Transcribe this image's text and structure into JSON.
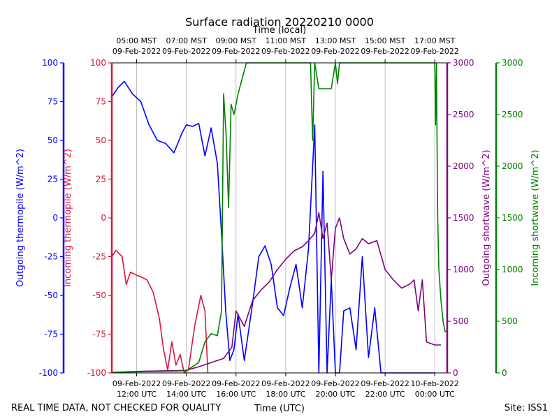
{
  "chart_data": {
    "type": "line",
    "title": "Surface radiation 20220210 0000",
    "top_xlabel": "Time (local)",
    "xlabel": "Time (UTC)",
    "footer_left": "REAL TIME DATA, NOT CHECKED FOR QUALITY",
    "footer_right": "Site: ISS1",
    "xlim": [
      "2022-02-09T11:00",
      "2022-02-10T00:30"
    ],
    "grid": true,
    "x_ticks_utc": [
      {
        "t": "2022-02-09T12:00",
        "line1": "09-Feb-2022",
        "line2": "12:00 UTC"
      },
      {
        "t": "2022-02-09T14:00",
        "line1": "09-Feb-2022",
        "line2": "14:00 UTC"
      },
      {
        "t": "2022-02-09T16:00",
        "line1": "09-Feb-2022",
        "line2": "16:00 UTC"
      },
      {
        "t": "2022-02-09T18:00",
        "line1": "09-Feb-2022",
        "line2": "18:00 UTC"
      },
      {
        "t": "2022-02-09T20:00",
        "line1": "09-Feb-2022",
        "line2": "20:00 UTC"
      },
      {
        "t": "2022-02-09T22:00",
        "line1": "09-Feb-2022",
        "line2": "22:00 UTC"
      },
      {
        "t": "2022-02-10T00:00",
        "line1": "10-Feb-2022",
        "line2": "00:00 UTC"
      }
    ],
    "x_ticks_local": [
      {
        "t": "2022-02-09T12:00",
        "line1": "05:00 MST",
        "line2": "09-Feb-2022"
      },
      {
        "t": "2022-02-09T14:00",
        "line1": "07:00 MST",
        "line2": "09-Feb-2022"
      },
      {
        "t": "2022-02-09T16:00",
        "line1": "09:00 MST",
        "line2": "09-Feb-2022"
      },
      {
        "t": "2022-02-09T18:00",
        "line1": "11:00 MST",
        "line2": "09-Feb-2022"
      },
      {
        "t": "2022-02-09T20:00",
        "line1": "13:00 MST",
        "line2": "09-Feb-2022"
      },
      {
        "t": "2022-02-09T22:00",
        "line1": "15:00 MST",
        "line2": "09-Feb-2022"
      },
      {
        "t": "2022-02-10T00:00",
        "line1": "17:00 MST",
        "line2": "09-Feb-2022"
      }
    ],
    "axes": [
      {
        "id": "thermo_out",
        "label": "Outgoing thermopile (W/m^2)",
        "color": "#0000ff",
        "ylim": [
          -100,
          100
        ],
        "ticks": [
          -100,
          -75,
          -50,
          -25,
          0,
          25,
          50,
          75,
          100
        ],
        "side": "left",
        "position": "outer"
      },
      {
        "id": "thermo_in",
        "label": "Incoming thermopile (W/m^2)",
        "color": "#dc143c",
        "ylim": [
          -100,
          100
        ],
        "ticks": [
          -100,
          -75,
          -50,
          -25,
          0,
          25,
          50,
          75,
          100
        ],
        "side": "left",
        "position": "inner"
      },
      {
        "id": "sw_out",
        "label": "Outgoing shortwave (W/m^2)",
        "color": "#800080",
        "ylim": [
          0,
          3000
        ],
        "ticks": [
          0,
          500,
          1000,
          1500,
          2000,
          2500,
          3000
        ],
        "side": "right",
        "position": "inner"
      },
      {
        "id": "sw_in",
        "label": "Incoming shortwave (W/m^2)",
        "color": "#008000",
        "ylim": [
          0,
          3000
        ],
        "ticks": [
          0,
          500,
          1000,
          1500,
          2000,
          2500,
          3000
        ],
        "side": "right",
        "position": "outer"
      }
    ],
    "series": [
      {
        "name": "Outgoing thermopile",
        "axis": "thermo_out",
        "color": "#0000ff",
        "x": [
          "2022-02-09T11:00",
          "2022-02-09T11:15",
          "2022-02-09T11:30",
          "2022-02-09T11:50",
          "2022-02-09T12:10",
          "2022-02-09T12:30",
          "2022-02-09T12:50",
          "2022-02-09T13:10",
          "2022-02-09T13:30",
          "2022-02-09T13:50",
          "2022-02-09T14:00",
          "2022-02-09T14:15",
          "2022-02-09T14:30",
          "2022-02-09T14:45",
          "2022-02-09T15:00",
          "2022-02-09T15:15",
          "2022-02-09T15:25",
          "2022-02-09T15:35",
          "2022-02-09T15:45",
          "2022-02-09T15:55",
          "2022-02-09T16:05",
          "2022-02-09T16:20",
          "2022-02-09T16:40",
          "2022-02-09T16:55",
          "2022-02-09T17:10",
          "2022-02-09T17:25",
          "2022-02-09T17:40",
          "2022-02-09T17:55",
          "2022-02-09T18:10",
          "2022-02-09T18:25",
          "2022-02-09T18:40",
          "2022-02-09T18:55",
          "2022-02-09T19:10",
          "2022-02-09T19:20",
          "2022-02-09T19:30",
          "2022-02-09T19:40",
          "2022-02-09T19:50",
          "2022-02-09T20:00",
          "2022-02-09T20:10",
          "2022-02-09T20:20",
          "2022-02-09T20:35",
          "2022-02-09T20:50",
          "2022-02-09T21:05",
          "2022-02-09T21:20",
          "2022-02-09T21:35",
          "2022-02-09T21:50",
          "2022-02-09T22:05",
          "2022-02-09T22:20",
          "2022-02-09T22:40",
          "2022-02-09T23:00",
          "2022-02-09T23:20",
          "2022-02-09T23:40",
          "2022-02-10T00:00"
        ],
        "y": [
          78,
          84,
          88,
          80,
          75,
          60,
          50,
          48,
          42,
          55,
          60,
          59,
          61,
          40,
          58,
          35,
          -10,
          -60,
          -92,
          -85,
          -62,
          -92,
          -55,
          -25,
          -18,
          -30,
          -58,
          -63,
          -45,
          -30,
          -58,
          -20,
          60,
          -100,
          30,
          -100,
          -40,
          -100,
          -100,
          -60,
          -58,
          -85,
          -25,
          -90,
          -58,
          -100,
          -100,
          -100,
          -100,
          -100,
          -100,
          -100,
          -100
        ]
      },
      {
        "name": "Incoming thermopile",
        "axis": "thermo_in",
        "color": "#dc143c",
        "x": [
          "2022-02-09T11:00",
          "2022-02-09T11:10",
          "2022-02-09T11:25",
          "2022-02-09T11:35",
          "2022-02-09T11:45",
          "2022-02-09T12:00",
          "2022-02-09T12:10",
          "2022-02-09T12:25",
          "2022-02-09T12:40",
          "2022-02-09T12:55",
          "2022-02-09T13:05",
          "2022-02-09T13:15",
          "2022-02-09T13:25",
          "2022-02-09T13:35",
          "2022-02-09T13:45",
          "2022-02-09T13:55",
          "2022-02-09T14:05",
          "2022-02-09T14:20",
          "2022-02-09T14:35",
          "2022-02-09T14:45",
          "2022-02-09T14:52"
        ],
        "y": [
          -25,
          -21,
          -25,
          -43,
          -35,
          -37,
          -38,
          -40,
          -48,
          -65,
          -85,
          -98,
          -80,
          -95,
          -88,
          -100,
          -98,
          -70,
          -50,
          -60,
          -100
        ]
      },
      {
        "name": "Outgoing shortwave",
        "axis": "sw_out",
        "color": "#800080",
        "x": [
          "2022-02-09T11:00",
          "2022-02-09T12:00",
          "2022-02-09T13:00",
          "2022-02-09T14:00",
          "2022-02-09T14:30",
          "2022-02-09T15:00",
          "2022-02-09T15:30",
          "2022-02-09T15:50",
          "2022-02-09T16:00",
          "2022-02-09T16:20",
          "2022-02-09T16:40",
          "2022-02-09T17:00",
          "2022-02-09T17:20",
          "2022-02-09T17:40",
          "2022-02-09T18:00",
          "2022-02-09T18:20",
          "2022-02-09T18:40",
          "2022-02-09T18:55",
          "2022-02-09T19:10",
          "2022-02-09T19:20",
          "2022-02-09T19:30",
          "2022-02-09T19:40",
          "2022-02-09T19:50",
          "2022-02-09T20:00",
          "2022-02-09T20:10",
          "2022-02-09T20:20",
          "2022-02-09T20:35",
          "2022-02-09T20:50",
          "2022-02-09T21:05",
          "2022-02-09T21:20",
          "2022-02-09T21:40",
          "2022-02-09T22:00",
          "2022-02-09T22:20",
          "2022-02-09T22:40",
          "2022-02-09T23:00",
          "2022-02-09T23:10",
          "2022-02-09T23:20",
          "2022-02-09T23:30",
          "2022-02-09T23:40",
          "2022-02-10T00:00",
          "2022-02-10T00:15"
        ],
        "y": [
          5,
          15,
          20,
          25,
          60,
          100,
          140,
          250,
          600,
          450,
          700,
          800,
          880,
          1000,
          1100,
          1180,
          1220,
          1280,
          1350,
          1550,
          1300,
          1450,
          900,
          1400,
          1500,
          1300,
          1150,
          1200,
          1300,
          1250,
          1280,
          1000,
          900,
          820,
          860,
          900,
          600,
          900,
          300,
          270,
          270
        ]
      },
      {
        "name": "Incoming shortwave",
        "axis": "sw_in",
        "color": "#008000",
        "x": [
          "2022-02-09T11:00",
          "2022-02-09T12:00",
          "2022-02-09T13:00",
          "2022-02-09T14:00",
          "2022-02-09T14:30",
          "2022-02-09T14:45",
          "2022-02-09T15:00",
          "2022-02-09T15:15",
          "2022-02-09T15:25",
          "2022-02-09T15:30",
          "2022-02-09T15:36",
          "2022-02-09T15:42",
          "2022-02-09T15:48",
          "2022-02-09T15:55",
          "2022-02-09T16:05",
          "2022-02-09T16:15",
          "2022-02-09T16:25",
          "2022-02-09T19:00",
          "2022-02-09T19:05",
          "2022-02-09T19:10",
          "2022-02-09T19:20",
          "2022-02-09T19:50",
          "2022-02-09T20:00",
          "2022-02-09T20:05",
          "2022-02-09T20:10",
          "2022-02-10T00:00",
          "2022-02-10T00:02",
          "2022-02-10T00:04",
          "2022-02-10T00:07",
          "2022-02-10T00:10",
          "2022-02-10T00:15",
          "2022-02-10T00:20",
          "2022-02-10T00:25",
          "2022-02-10T00:30"
        ],
        "y": [
          5,
          10,
          15,
          20,
          100,
          300,
          380,
          360,
          600,
          2700,
          2300,
          1600,
          2600,
          2500,
          2700,
          2850,
          3000,
          3000,
          2250,
          3000,
          2750,
          2750,
          3000,
          2800,
          3000,
          3000,
          2400,
          3000,
          1500,
          1000,
          700,
          500,
          400,
          400
        ]
      }
    ]
  }
}
